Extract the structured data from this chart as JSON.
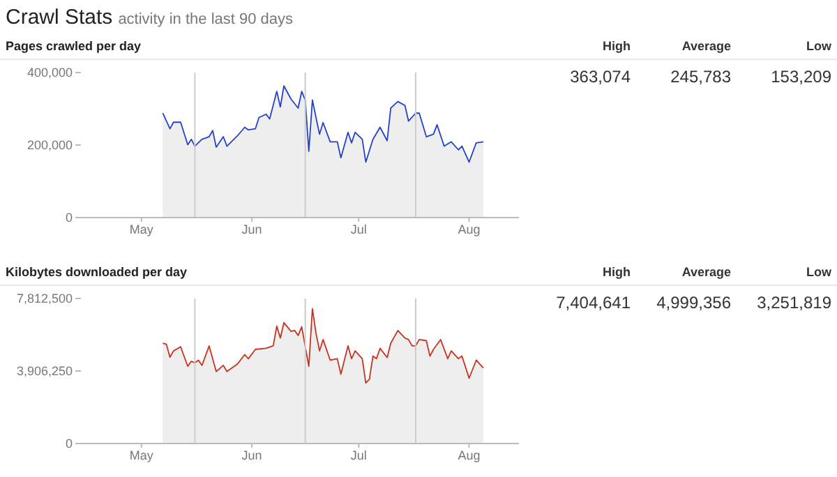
{
  "chart_data": [
    {
      "type": "other",
      "title": "Crawl Stats",
      "subtitle": "activity in the last 90 days"
    },
    {
      "type": "area",
      "title": "Pages crawled per day",
      "x": [
        "--05-07",
        "--05-09",
        "--05-10",
        "--05-12",
        "--05-14",
        "--05-15",
        "--05-16",
        "--05-18",
        "--05-20",
        "--05-21",
        "--05-22",
        "--05-24",
        "--05-25",
        "--05-28",
        "--05-30",
        "--05-31",
        "--06-02",
        "--06-03",
        "--06-05",
        "--06-06",
        "--06-08",
        "--06-09",
        "--06-10",
        "--06-12",
        "--06-14",
        "--06-15",
        "--06-16",
        "--06-17",
        "--06-18",
        "--06-20",
        "--06-21",
        "--06-23",
        "--06-25",
        "--06-26",
        "--06-28",
        "--06-29",
        "--06-30",
        "--07-02",
        "--07-03",
        "--07-05",
        "--07-07",
        "--07-09",
        "--07-10",
        "--07-12",
        "--07-14",
        "--07-15",
        "--07-17",
        "--07-18",
        "--07-20",
        "--07-22",
        "--07-23",
        "--07-25",
        "--07-27",
        "--07-29",
        "--07-30",
        "--08-01",
        "--08-03",
        "--08-05"
      ],
      "series": [
        {
          "color": "#2442c8",
          "values": [
            288000,
            245000,
            263000,
            263000,
            201000,
            216000,
            197000,
            216000,
            223000,
            240000,
            194000,
            223000,
            197000,
            226000,
            249000,
            242000,
            245000,
            276000,
            285000,
            272000,
            348000,
            305000,
            363000,
            327000,
            302000,
            348000,
            324000,
            183000,
            324000,
            230000,
            262000,
            209000,
            209000,
            165000,
            235000,
            206000,
            235000,
            216000,
            153000,
            216000,
            249000,
            212000,
            302000,
            320000,
            309000,
            266000,
            288000,
            288000,
            223000,
            230000,
            256000,
            197000,
            209000,
            187000,
            197000,
            153000,
            206000,
            209000
          ]
        }
      ],
      "xlim": [
        "--04-14",
        "--08-15"
      ],
      "xticks": [
        {
          "value": "--05-01",
          "label": "May"
        },
        {
          "value": "--06-01",
          "label": "Jun"
        },
        {
          "value": "--07-01",
          "label": "Jul"
        },
        {
          "value": "--08-01",
          "label": "Aug"
        }
      ],
      "ylim": [
        0,
        400000
      ],
      "yticks": [
        0,
        {
          "value": 200000,
          "label": "200,000"
        },
        {
          "value": 400000,
          "label": "400,000"
        }
      ],
      "grid": false,
      "legend": false,
      "ref_lines": [
        {
          "axis": "x",
          "value": "--05-16",
          "label": null,
          "color": "#cccccc"
        },
        {
          "axis": "x",
          "value": "--06-16",
          "label": null,
          "color": "#cccccc"
        },
        {
          "axis": "x",
          "value": "--07-17",
          "label": null,
          "color": "#cccccc"
        }
      ]
    },
    {
      "type": "other",
      "categories": [
        "High",
        "Average",
        "Low"
      ],
      "value_labels": [
        "363,074",
        "245,783",
        "153,209"
      ]
    },
    {
      "type": "area",
      "title": "Kilobytes downloaded per day",
      "x": [
        "--05-07",
        "--05-08",
        "--05-09",
        "--05-10",
        "--05-12",
        "--05-14",
        "--05-15",
        "--05-16",
        "--05-17",
        "--05-18",
        "--05-20",
        "--05-22",
        "--05-24",
        "--05-25",
        "--05-28",
        "--05-30",
        "--05-31",
        "--06-02",
        "--06-05",
        "--06-07",
        "--06-08",
        "--06-09",
        "--06-10",
        "--06-12",
        "--06-13",
        "--06-14",
        "--06-15",
        "--06-17",
        "--06-18",
        "--06-19",
        "--06-20",
        "--06-21",
        "--06-23",
        "--06-25",
        "--06-26",
        "--06-28",
        "--06-29",
        "--06-30",
        "--07-02",
        "--07-03",
        "--07-04",
        "--07-05",
        "--07-06",
        "--07-07",
        "--07-09",
        "--07-10",
        "--07-12",
        "--07-14",
        "--07-15",
        "--07-16",
        "--07-17",
        "--07-18",
        "--07-20",
        "--07-21",
        "--07-22",
        "--07-24",
        "--07-26",
        "--07-27",
        "--07-29",
        "--07-30",
        "--08-01",
        "--08-03",
        "--08-05"
      ],
      "series": [
        {
          "color": "#c8321e",
          "values": [
            5400000,
            5350000,
            4650000,
            4990000,
            5210000,
            4160000,
            4430000,
            4350000,
            4490000,
            4210000,
            5260000,
            3880000,
            4210000,
            3880000,
            4290000,
            4790000,
            4570000,
            5070000,
            5130000,
            5260000,
            6320000,
            5680000,
            6510000,
            6040000,
            6090000,
            5820000,
            6290000,
            4160000,
            7260000,
            5960000,
            4990000,
            5600000,
            4490000,
            4570000,
            3740000,
            5260000,
            4570000,
            4990000,
            4570000,
            3260000,
            3460000,
            4710000,
            4570000,
            5130000,
            4630000,
            5400000,
            6090000,
            5680000,
            5600000,
            5260000,
            5260000,
            5600000,
            5540000,
            4710000,
            5070000,
            5600000,
            4570000,
            4990000,
            4570000,
            4710000,
            3520000,
            4490000,
            4070000
          ]
        }
      ],
      "xlim": [
        "--04-14",
        "--08-15"
      ],
      "xticks": [
        {
          "value": "--05-01",
          "label": "May"
        },
        {
          "value": "--06-01",
          "label": "Jun"
        },
        {
          "value": "--07-01",
          "label": "Jul"
        },
        {
          "value": "--08-01",
          "label": "Aug"
        }
      ],
      "ylim": [
        0,
        7812500
      ],
      "yticks": [
        0,
        {
          "value": 3906250,
          "label": "3,906,250"
        },
        {
          "value": 7812500,
          "label": "7,812,500"
        }
      ],
      "grid": false,
      "legend": false,
      "ref_lines": [
        {
          "axis": "x",
          "value": "--05-16",
          "label": null,
          "color": "#cccccc"
        },
        {
          "axis": "x",
          "value": "--06-16",
          "label": null,
          "color": "#cccccc"
        },
        {
          "axis": "x",
          "value": "--07-17",
          "label": null,
          "color": "#cccccc"
        }
      ]
    },
    {
      "type": "other",
      "categories": [
        "High",
        "Average",
        "Low"
      ],
      "value_labels": [
        "7,404,641",
        "4,999,356",
        "3,251,819"
      ]
    }
  ]
}
